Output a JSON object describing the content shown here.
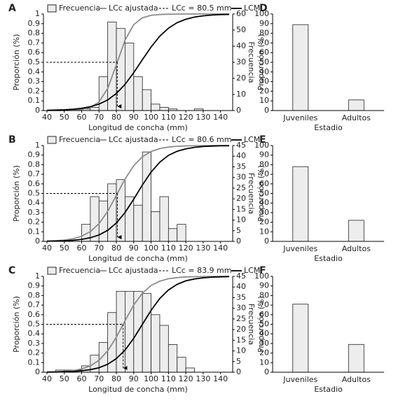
{
  "chart_data": [
    {
      "type": "histogram",
      "panel": "A",
      "xlabel": "Longitud de concha (mm)",
      "ylabel": "Proporción (%)",
      "y2label": "Frecuencia",
      "xlim": [
        38,
        147
      ],
      "xticks": [
        40,
        50,
        60,
        70,
        80,
        90,
        100,
        110,
        120,
        130,
        140
      ],
      "ylim": [
        0,
        1
      ],
      "yticks": [
        0,
        0.1,
        0.2,
        0.3,
        0.4,
        0.5,
        0.6,
        0.7,
        0.8,
        0.9,
        1
      ],
      "y2lim": [
        0,
        60
      ],
      "y2ticks": [
        0,
        10,
        20,
        30,
        40,
        50,
        60
      ],
      "bins": [
        40,
        45,
        50,
        55,
        60,
        65,
        70,
        75,
        80,
        85,
        90,
        95,
        100,
        105,
        110,
        115,
        120,
        125,
        130
      ],
      "curve_x": [
        40,
        45,
        50,
        55,
        60,
        65,
        70,
        75,
        80,
        85,
        90,
        95,
        100,
        105,
        110,
        115,
        120,
        125,
        130,
        135,
        140,
        145
      ],
      "series": [
        {
          "name": "Frecuencia",
          "axis": "y2",
          "color": "#ededed",
          "values": [
            0,
            0,
            0,
            0,
            1,
            2,
            21,
            55,
            51,
            42,
            21,
            13,
            4,
            2,
            1,
            0,
            0,
            1
          ]
        },
        {
          "name": "LCc ajustada",
          "color": "#8c8c8c",
          "values": [
            0.0001,
            0.0004,
            0.0012,
            0.0037,
            0.011,
            0.032,
            0.09,
            0.23,
            0.473,
            0.729,
            0.89,
            0.96,
            0.986,
            0.995,
            0.998,
            0.999,
            1,
            1,
            1,
            1,
            1,
            1
          ]
        },
        {
          "name": "LCM",
          "color": "#000000",
          "values": [
            0.003,
            0.005,
            0.008,
            0.014,
            0.023,
            0.04,
            0.067,
            0.11,
            0.177,
            0.271,
            0.392,
            0.527,
            0.659,
            0.77,
            0.853,
            0.91,
            0.946,
            0.968,
            0.981,
            0.989,
            0.994,
            0.996
          ]
        }
      ],
      "lc": {
        "name": "LCc = 80.5 mm",
        "value": 80.5,
        "proportion": 0.5
      }
    },
    {
      "type": "histogram",
      "panel": "B",
      "xlabel": "Longitud de concha (mm)",
      "ylabel": "Proporción (%)",
      "y2label": "Frecuencia",
      "xlim": [
        38,
        147
      ],
      "xticks": [
        40,
        50,
        60,
        70,
        80,
        90,
        100,
        110,
        120,
        130,
        140
      ],
      "ylim": [
        0,
        1
      ],
      "yticks": [
        0,
        0.1,
        0.2,
        0.3,
        0.4,
        0.5,
        0.6,
        0.7,
        0.8,
        0.9,
        1
      ],
      "y2lim": [
        0,
        45
      ],
      "y2ticks": [
        0,
        5,
        10,
        15,
        20,
        25,
        30,
        35,
        40,
        45
      ],
      "bins": [
        40,
        45,
        50,
        55,
        60,
        65,
        70,
        75,
        80,
        85,
        90,
        95,
        100,
        105,
        110,
        115,
        120,
        125,
        130
      ],
      "curve_x": [
        40,
        45,
        50,
        55,
        60,
        65,
        70,
        75,
        80,
        85,
        90,
        95,
        100,
        105,
        110,
        115,
        120,
        125,
        130,
        135,
        140,
        145
      ],
      "series": [
        {
          "name": "Frecuencia",
          "axis": "y2",
          "color": "#ededed",
          "values": [
            0,
            0,
            0,
            0,
            8,
            21,
            19,
            27,
            29,
            21,
            17,
            42,
            14,
            21,
            6,
            8,
            0,
            0
          ]
        },
        {
          "name": "LCc ajustada",
          "color": "#8c8c8c",
          "values": [
            0.003,
            0.007,
            0.014,
            0.027,
            0.053,
            0.102,
            0.185,
            0.314,
            0.48,
            0.65,
            0.789,
            0.883,
            0.938,
            0.968,
            0.984,
            0.992,
            0.996,
            0.998,
            0.999,
            1,
            1,
            1
          ]
        },
        {
          "name": "LCM",
          "color": "#000000",
          "values": [
            0.002,
            0.004,
            0.006,
            0.012,
            0.021,
            0.038,
            0.067,
            0.115,
            0.192,
            0.301,
            0.44,
            0.589,
            0.723,
            0.826,
            0.897,
            0.94,
            0.966,
            0.981,
            0.99,
            0.994,
            0.997,
            0.998
          ]
        }
      ],
      "lc": {
        "name": "LCc = 80.6 mm",
        "value": 80.6,
        "proportion": 0.5
      }
    },
    {
      "type": "histogram",
      "panel": "C",
      "xlabel": "Longitud de concha (mm)",
      "ylabel": "Proporción (%)",
      "y2label": "Frecuencia",
      "xlim": [
        38,
        147
      ],
      "xticks": [
        40,
        50,
        60,
        70,
        80,
        90,
        100,
        110,
        120,
        130,
        140
      ],
      "ylim": [
        0,
        1
      ],
      "yticks": [
        0,
        0.1,
        0.2,
        0.3,
        0.4,
        0.5,
        0.6,
        0.7,
        0.8,
        0.9,
        1
      ],
      "y2lim": [
        0,
        45
      ],
      "y2ticks": [
        0,
        5,
        10,
        15,
        20,
        25,
        30,
        35,
        40,
        45
      ],
      "bins": [
        40,
        45,
        50,
        55,
        60,
        65,
        70,
        75,
        80,
        85,
        90,
        95,
        100,
        105,
        110,
        115,
        120,
        125,
        130
      ],
      "curve_x": [
        40,
        45,
        50,
        55,
        60,
        65,
        70,
        75,
        80,
        85,
        90,
        95,
        100,
        105,
        110,
        115,
        120,
        125,
        130,
        135,
        140,
        145
      ],
      "series": [
        {
          "name": "Frecuencia",
          "axis": "y2",
          "color": "#ededed",
          "values": [
            0,
            1,
            1,
            1,
            3,
            8,
            14,
            28,
            38,
            38,
            38,
            37,
            27,
            22,
            13,
            7,
            2,
            0
          ]
        },
        {
          "name": "LCc ajustada",
          "color": "#8c8c8c",
          "values": [
            0.002,
            0.004,
            0.009,
            0.017,
            0.034,
            0.066,
            0.125,
            0.223,
            0.366,
            0.537,
            0.701,
            0.825,
            0.905,
            0.95,
            0.975,
            0.987,
            0.994,
            0.997,
            0.998,
            0.999,
            1,
            1
          ]
        },
        {
          "name": "LCM",
          "color": "#000000",
          "values": [
            0.001,
            0.002,
            0.005,
            0.008,
            0.015,
            0.027,
            0.047,
            0.083,
            0.142,
            0.231,
            0.354,
            0.5,
            0.646,
            0.769,
            0.858,
            0.917,
            0.953,
            0.973,
            0.985,
            0.992,
            0.995,
            0.998
          ]
        }
      ],
      "lc": {
        "name": "LCc = 83.9 mm",
        "value": 83.9,
        "proportion": 0.5
      }
    },
    {
      "type": "bar",
      "panel": "D",
      "xlabel": "Estadio",
      "ylabel": "Proporción (%)",
      "color": "#ededed",
      "categories": [
        "Juveniles",
        "Adultos"
      ],
      "values": [
        89,
        11
      ],
      "ylim": [
        0,
        100
      ],
      "yticks": [
        0,
        10,
        20,
        30,
        40,
        50,
        60,
        70,
        80,
        90,
        100
      ]
    },
    {
      "type": "bar",
      "panel": "E",
      "xlabel": "Estadio",
      "ylabel": "Proporción (%)",
      "color": "#ededed",
      "categories": [
        "Juveniles",
        "Adultos"
      ],
      "values": [
        78,
        22
      ],
      "ylim": [
        0,
        100
      ],
      "yticks": [
        0,
        10,
        20,
        30,
        40,
        50,
        60,
        70,
        80,
        90,
        100
      ]
    },
    {
      "type": "bar",
      "panel": "F",
      "xlabel": "Estadio",
      "ylabel": "Proporción (%)",
      "color": "#ededed",
      "categories": [
        "Juveniles",
        "Adultos"
      ],
      "values": [
        71,
        29
      ],
      "ylim": [
        0,
        100
      ],
      "yticks": [
        0,
        10,
        20,
        30,
        40,
        50,
        60,
        70,
        80,
        90,
        100
      ]
    }
  ]
}
